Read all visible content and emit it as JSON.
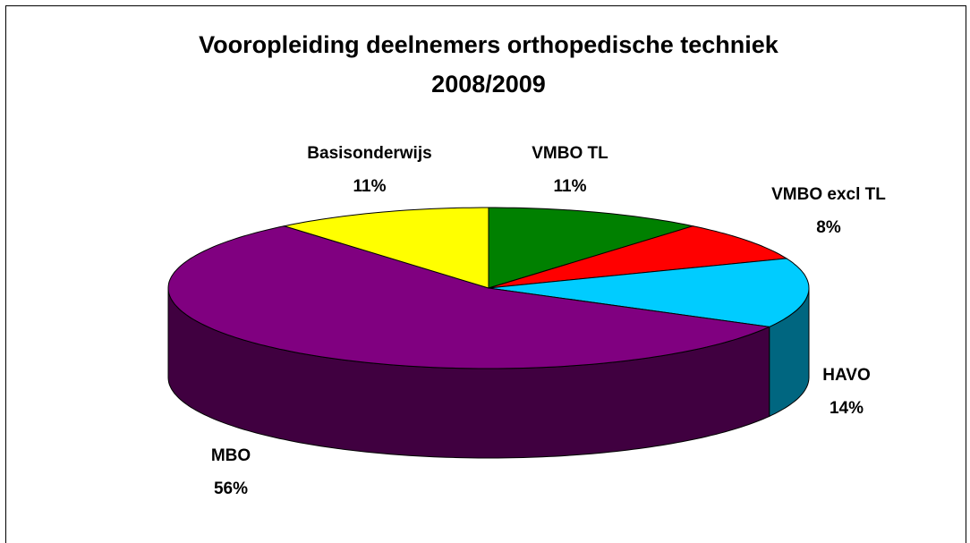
{
  "chart_data": {
    "type": "pie",
    "title": [
      "Vooropleiding deelnemers orthopedische techniek",
      "2008/2009"
    ],
    "categories": [
      "VMBO TL",
      "VMBO excl TL",
      "HAVO",
      "MBO",
      "Basisonderwijs"
    ],
    "values": [
      11,
      8,
      14,
      56,
      11
    ],
    "value_labels": [
      "11%",
      "8%",
      "14%",
      "56%",
      "11%"
    ],
    "colors": [
      "#008000",
      "#ff0000",
      "#00ccff",
      "#800080",
      "#ffff00"
    ]
  }
}
